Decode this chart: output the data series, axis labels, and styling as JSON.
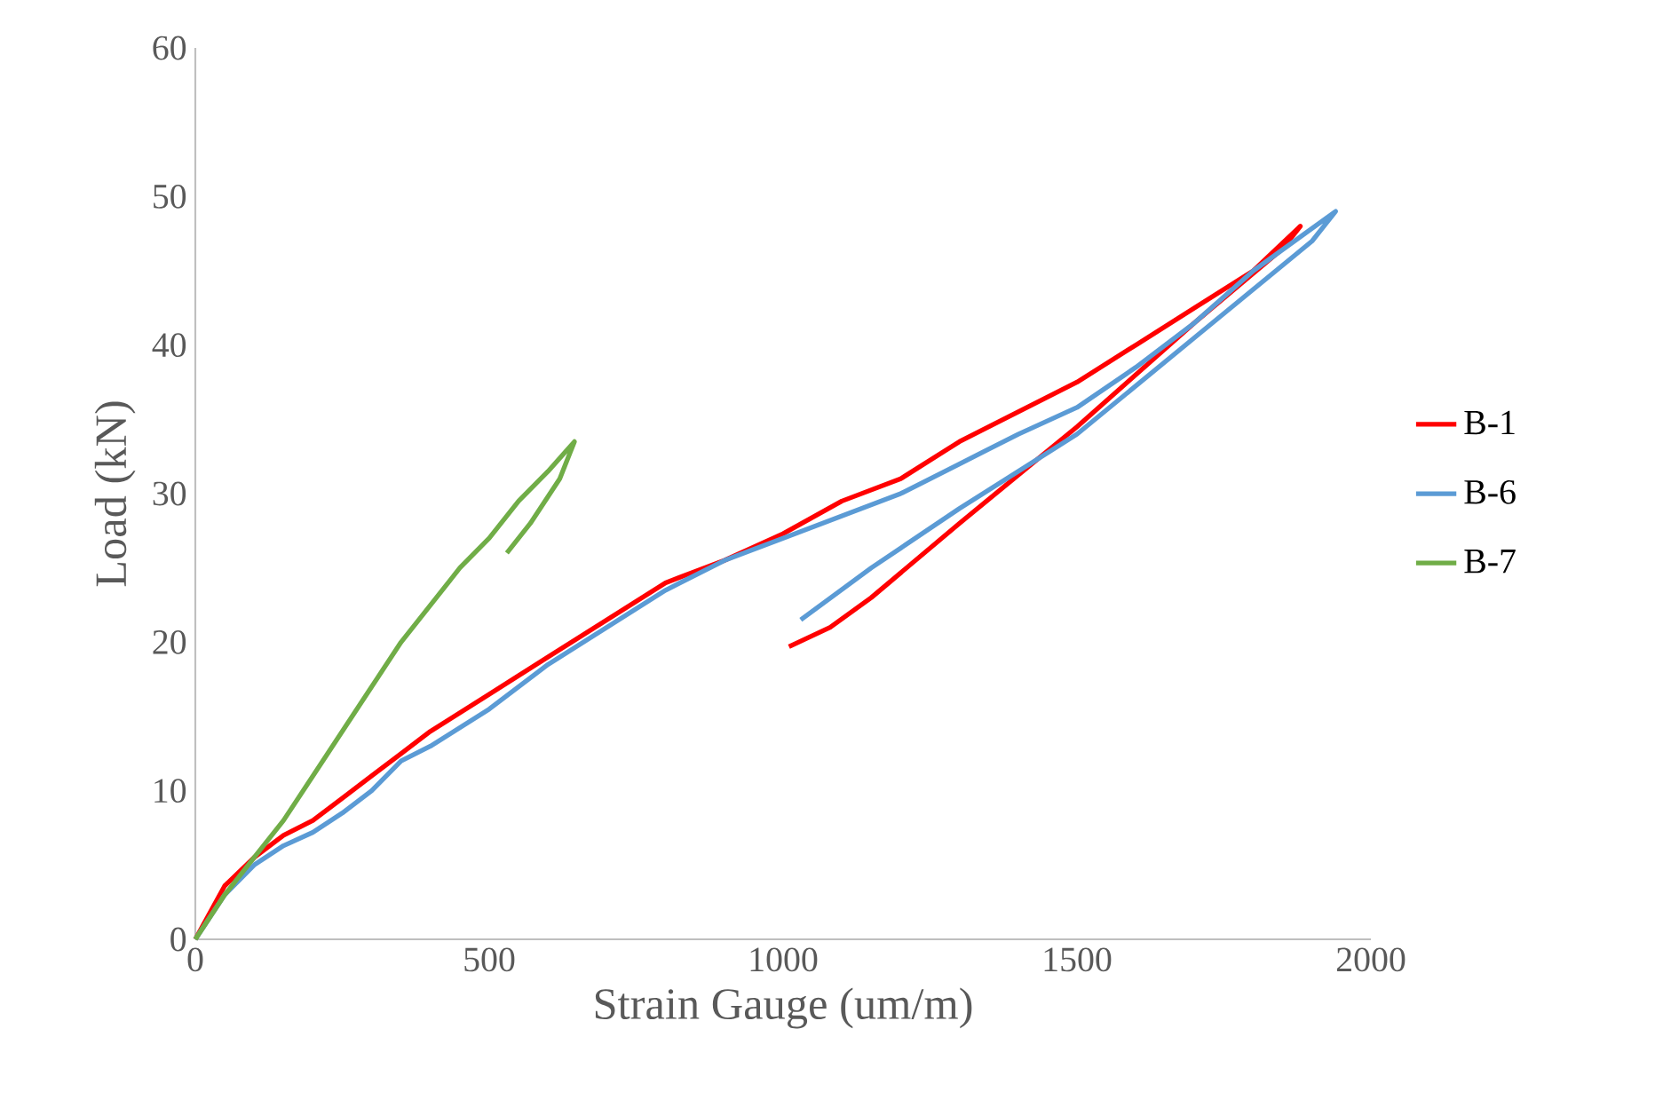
{
  "chart_data": {
    "type": "line",
    "xlabel": "Strain Gauge (um/m)",
    "ylabel": "Load (kN)",
    "xlim": [
      0,
      2000
    ],
    "ylim": [
      0,
      60
    ],
    "xticks": [
      0,
      500,
      1000,
      1500,
      2000
    ],
    "yticks": [
      0,
      10,
      20,
      30,
      40,
      50,
      60
    ],
    "grid": false,
    "legend": "right",
    "marker": "none",
    "line_style": "solid",
    "series": [
      {
        "name": "B-1",
        "color": "#ff0000",
        "x": [
          0,
          50,
          100,
          150,
          200,
          250,
          300,
          350,
          400,
          500,
          600,
          700,
          800,
          900,
          1000,
          1100,
          1200,
          1300,
          1400,
          1500,
          1600,
          1700,
          1800,
          1880,
          1850,
          1700,
          1500,
          1300,
          1150,
          1080,
          1010
        ],
        "values": [
          0,
          3.6,
          5.5,
          7,
          8,
          9.5,
          11,
          12.5,
          14,
          16.5,
          19,
          21.5,
          24,
          25.5,
          27.3,
          29.5,
          31,
          33.5,
          35.5,
          37.5,
          40,
          42.5,
          45,
          48,
          46.5,
          41.5,
          34.5,
          28,
          23,
          21,
          19.7
        ]
      },
      {
        "name": "B-6",
        "color": "#5b9bd5",
        "x": [
          0,
          50,
          100,
          150,
          200,
          250,
          300,
          350,
          400,
          500,
          600,
          700,
          800,
          900,
          1000,
          1100,
          1200,
          1300,
          1400,
          1500,
          1600,
          1700,
          1800,
          1940,
          1900,
          1700,
          1500,
          1300,
          1150,
          1030
        ],
        "values": [
          0,
          3,
          5,
          6.3,
          7.2,
          8.5,
          10,
          12,
          13,
          15.5,
          18.5,
          21,
          23.5,
          25.5,
          27,
          28.5,
          30,
          32,
          34,
          35.8,
          38.5,
          41.5,
          45,
          49,
          47,
          40.5,
          34,
          29,
          25,
          21.5
        ]
      },
      {
        "name": "B-7",
        "color": "#70ad47",
        "x": [
          0,
          50,
          100,
          150,
          200,
          250,
          300,
          350,
          400,
          450,
          500,
          550,
          600,
          645,
          620,
          570,
          530
        ],
        "values": [
          0,
          3,
          5.5,
          8,
          11,
          14,
          17,
          20,
          22.5,
          25,
          27,
          29.5,
          31.5,
          33.5,
          31,
          28,
          26
        ]
      }
    ]
  }
}
